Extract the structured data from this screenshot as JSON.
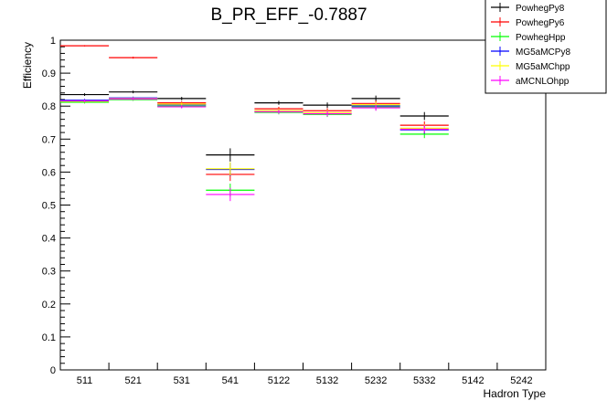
{
  "chart_data": {
    "type": "scatter",
    "title": "B_PR_EFF_-0.7887",
    "xlabel": "Hadron Type",
    "ylabel": "Efficiency",
    "ylim": [
      0,
      1
    ],
    "yticks": [
      "0",
      "0.1",
      "0.2",
      "0.3",
      "0.4",
      "0.5",
      "0.6",
      "0.7",
      "0.8",
      "0.9",
      "1"
    ],
    "categories": [
      "511",
      "521",
      "531",
      "541",
      "5122",
      "5132",
      "5232",
      "5332",
      "5142",
      "5242"
    ],
    "legend_position": "top-right",
    "grid": false,
    "series": [
      {
        "name": "PowhegPy8",
        "color": "#000000",
        "values": [
          0.835,
          0.843,
          0.823,
          0.652,
          0.81,
          0.803,
          0.823,
          0.77,
          null,
          null
        ],
        "errors": [
          0.004,
          0.004,
          0.005,
          0.02,
          0.006,
          0.008,
          0.009,
          0.012,
          null,
          null
        ]
      },
      {
        "name": "PowhegPy6",
        "color": "#ff0000",
        "values": [
          0.983,
          0.947,
          0.81,
          0.593,
          0.792,
          0.786,
          0.808,
          0.742,
          null,
          null
        ],
        "errors": [
          0.002,
          0.003,
          0.005,
          0.02,
          0.006,
          0.008,
          0.009,
          0.012,
          null,
          null
        ]
      },
      {
        "name": "PowhegHpp",
        "color": "#00ff00",
        "values": [
          0.812,
          0.82,
          0.8,
          0.545,
          0.781,
          0.775,
          0.797,
          0.715,
          null,
          null
        ],
        "errors": [
          0.004,
          0.004,
          0.005,
          0.02,
          0.006,
          0.008,
          0.009,
          0.012,
          null,
          null
        ]
      },
      {
        "name": "MG5aMCPy8",
        "color": "#0000ff",
        "values": [
          0.818,
          0.825,
          0.804,
          0.608,
          0.784,
          0.779,
          0.801,
          0.728,
          null,
          null
        ],
        "errors": [
          0.004,
          0.004,
          0.005,
          0.02,
          0.006,
          0.008,
          0.009,
          0.012,
          null,
          null
        ]
      },
      {
        "name": "MG5aMChpp",
        "color": "#ffff00",
        "values": [
          0.815,
          0.823,
          0.806,
          0.61,
          0.786,
          0.78,
          0.804,
          0.733,
          null,
          null
        ],
        "errors": [
          0.004,
          0.004,
          0.005,
          0.02,
          0.006,
          0.008,
          0.009,
          0.012,
          null,
          null
        ]
      },
      {
        "name": "aMCNLOhpp",
        "color": "#ff00ff",
        "values": [
          0.816,
          0.822,
          0.798,
          0.532,
          0.783,
          0.777,
          0.795,
          0.73,
          null,
          null
        ],
        "errors": [
          0.004,
          0.004,
          0.005,
          0.02,
          0.006,
          0.008,
          0.009,
          0.012,
          null,
          null
        ]
      }
    ]
  }
}
